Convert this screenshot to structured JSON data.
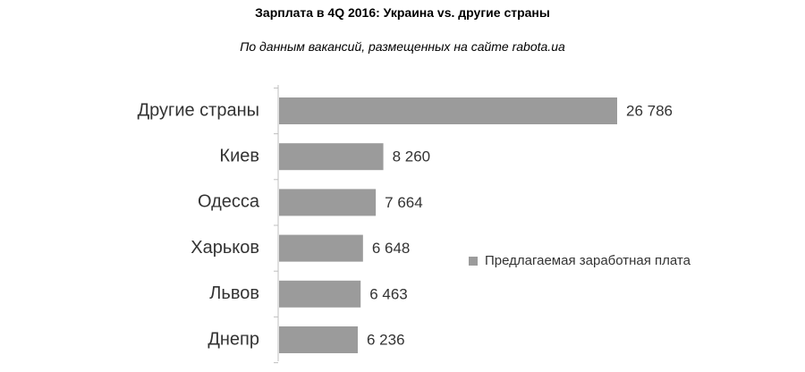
{
  "chart_data": {
    "type": "bar",
    "orientation": "horizontal",
    "title": "Зарплата в 4Q 2016: Украина vs. другие страны",
    "subtitle": "По данным вакансий, размещенных на сайте rabota.ua",
    "categories": [
      "Другие страны",
      "Киев",
      "Одесса",
      "Харьков",
      "Львов",
      "Днепр"
    ],
    "values": [
      26786,
      8260,
      7664,
      6648,
      6463,
      6236
    ],
    "value_labels": [
      "26 786",
      "8 260",
      "7 664",
      "6 648",
      "6 463",
      "6 236"
    ],
    "series": [
      {
        "name": "Предлагаемая заработная плата",
        "values": [
          26786,
          8260,
          7664,
          6648,
          6463,
          6236
        ]
      }
    ],
    "xlim": [
      0,
      26786
    ],
    "grid": false,
    "legend_position": "right",
    "bar_color": "#9b9b9b",
    "axis_color": "#bfbfbf"
  }
}
